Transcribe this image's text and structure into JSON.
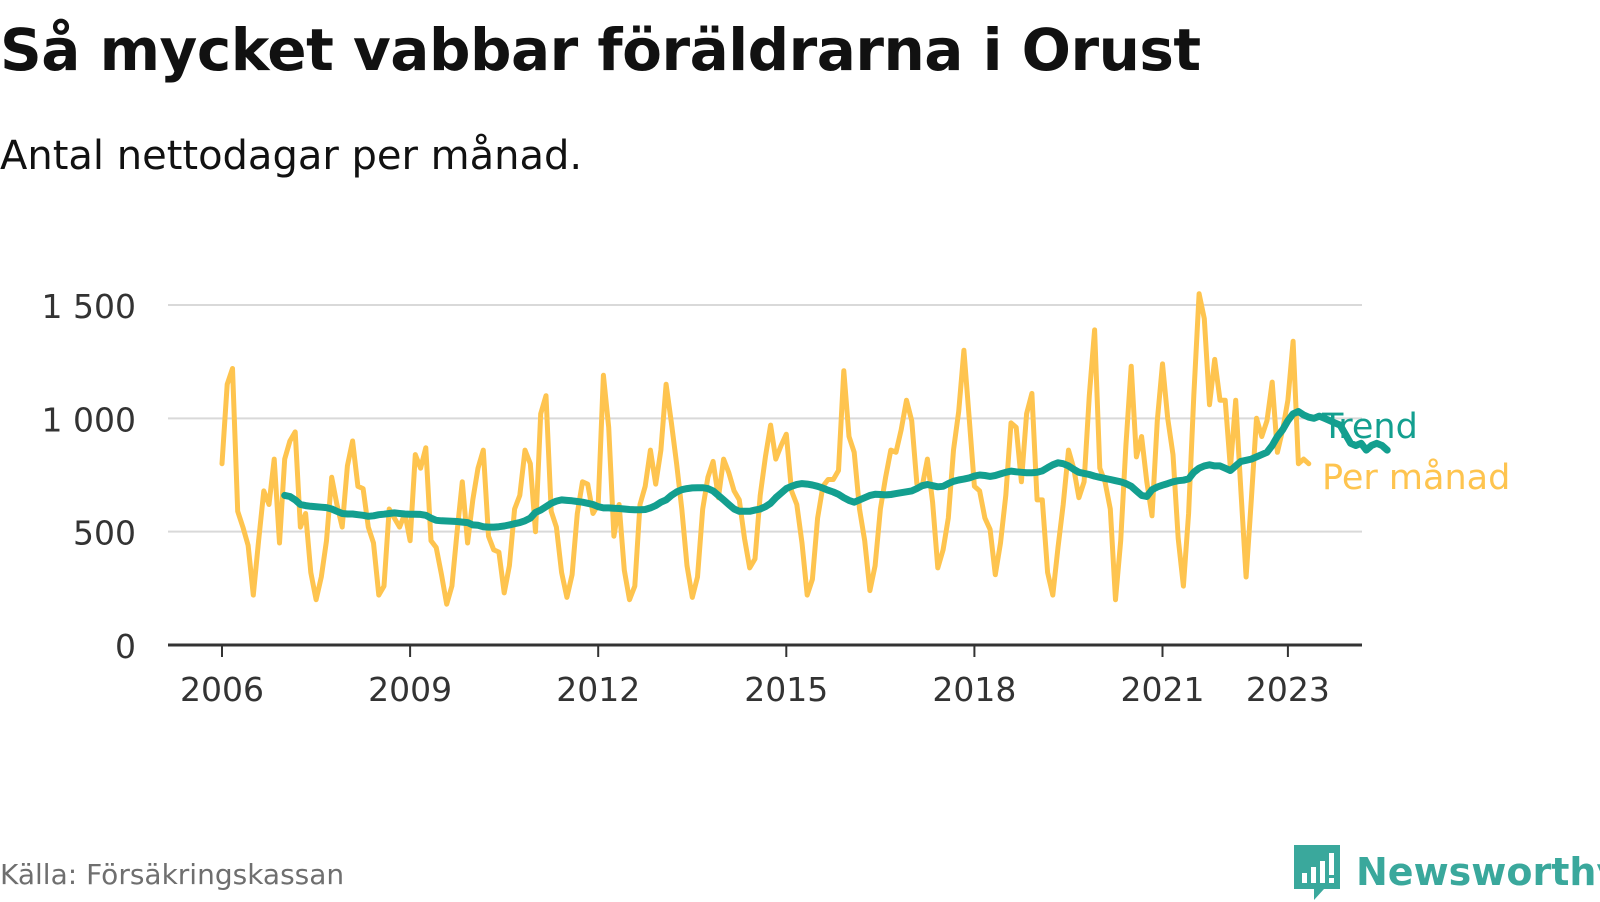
{
  "title": "Så mycket vabbar föräldrarna i Orust",
  "subtitle": "Antal nettodagar per månad.",
  "source": "Källa: Försäkringskassan",
  "brand": {
    "name": "Newsworthy",
    "icon": "newsworthy-logo-icon",
    "color": "#3aa89c"
  },
  "colors": {
    "monthly": "#fec44f",
    "trend": "#139f8f",
    "grid": "#d9d9d9",
    "axis": "#333333"
  },
  "chart_data": {
    "type": "line",
    "title": "Så mycket vabbar föräldrarna i Orust",
    "subtitle": "Antal nettodagar per månad.",
    "xlabel": "",
    "ylabel": "",
    "ylim": [
      0,
      1500
    ],
    "yticks": [
      0,
      500,
      1000,
      1500
    ],
    "ytick_labels": [
      "0",
      "500",
      "1 000",
      "1 500"
    ],
    "xticks": [
      2006,
      2009,
      2012,
      2015,
      2018,
      2021,
      2023
    ],
    "xtick_labels": [
      "2006",
      "2009",
      "2012",
      "2015",
      "2018",
      "2021",
      "2023"
    ],
    "grid": true,
    "legend": "direct labels at right end of lines",
    "series": [
      {
        "name": "Per månad",
        "start": "2006-01",
        "frequency": "monthly",
        "values": [
          800,
          1150,
          1220,
          590,
          520,
          440,
          220,
          460,
          680,
          620,
          820,
          450,
          820,
          900,
          940,
          520,
          580,
          320,
          200,
          300,
          460,
          740,
          620,
          520,
          790,
          900,
          700,
          690,
          520,
          450,
          220,
          260,
          600,
          560,
          520,
          580,
          460,
          840,
          780,
          870,
          460,
          430,
          310,
          180,
          260,
          500,
          720,
          450,
          640,
          780,
          860,
          480,
          420,
          410,
          230,
          350,
          600,
          660,
          860,
          800,
          500,
          1020,
          1100,
          590,
          520,
          320,
          210,
          310,
          580,
          720,
          710,
          580,
          620,
          1190,
          960,
          480,
          620,
          330,
          200,
          260,
          620,
          700,
          860,
          710,
          860,
          1150,
          980,
          800,
          600,
          350,
          210,
          300,
          600,
          740,
          810,
          650,
          820,
          760,
          680,
          640,
          470,
          340,
          380,
          660,
          830,
          970,
          820,
          880,
          930,
          680,
          620,
          450,
          220,
          290,
          560,
          700,
          730,
          730,
          770,
          1210,
          920,
          850,
          600,
          460,
          240,
          350,
          600,
          740,
          860,
          850,
          950,
          1080,
          990,
          710,
          700,
          820,
          630,
          340,
          420,
          560,
          860,
          1030,
          1300,
          1000,
          700,
          680,
          560,
          510,
          310,
          450,
          660,
          980,
          960,
          720,
          1020,
          1110,
          640,
          640,
          320,
          220,
          430,
          620,
          860,
          780,
          650,
          720,
          1100,
          1390,
          780,
          720,
          600,
          200,
          460,
          880,
          1230,
          830,
          920,
          720,
          570,
          990,
          1240,
          1000,
          840,
          470,
          260,
          580,
          1100,
          1550,
          1440,
          1060,
          1260,
          1080,
          1080,
          780,
          1080,
          680,
          300,
          640,
          1000,
          920,
          990,
          1160,
          850,
          950,
          1080,
          1340,
          800,
          820,
          800
        ]
      },
      {
        "name": "Trend",
        "start": "2007-01",
        "frequency": "monthly",
        "values": [
          660,
          655,
          640,
          620,
          615,
          612,
          610,
          608,
          606,
          600,
          590,
          580,
          578,
          578,
          575,
          572,
          568,
          570,
          575,
          577,
          580,
          583,
          580,
          578,
          577,
          577,
          576,
          572,
          560,
          550,
          548,
          547,
          546,
          545,
          542,
          540,
          530,
          528,
          522,
          520,
          520,
          522,
          525,
          530,
          535,
          540,
          548,
          560,
          585,
          595,
          610,
          625,
          635,
          640,
          638,
          636,
          633,
          630,
          625,
          620,
          610,
          605,
          605,
          603,
          602,
          600,
          598,
          597,
          597,
          598,
          605,
          615,
          630,
          640,
          660,
          675,
          685,
          690,
          693,
          694,
          694,
          690,
          680,
          660,
          640,
          620,
          600,
          590,
          590,
          590,
          595,
          600,
          610,
          625,
          650,
          670,
          690,
          700,
          708,
          712,
          710,
          706,
          700,
          692,
          683,
          675,
          665,
          650,
          638,
          630,
          640,
          650,
          660,
          665,
          664,
          662,
          664,
          668,
          672,
          676,
          680,
          690,
          703,
          708,
          703,
          698,
          700,
          712,
          722,
          728,
          732,
          737,
          745,
          750,
          748,
          744,
          748,
          755,
          762,
          767,
          764,
          762,
          760,
          760,
          762,
          768,
          782,
          795,
          804,
          800,
          790,
          775,
          762,
          757,
          752,
          745,
          740,
          735,
          730,
          725,
          720,
          712,
          700,
          680,
          660,
          655,
          685,
          697,
          705,
          712,
          720,
          725,
          727,
          733,
          762,
          780,
          790,
          795,
          790,
          790,
          780,
          770,
          790,
          810,
          815,
          820,
          830,
          840,
          850,
          880,
          920,
          950,
          990,
          1020,
          1030,
          1015,
          1005,
          1000,
          1010,
          1000,
          990,
          980,
          970,
          930,
          890,
          880,
          890,
          860,
          880,
          890,
          880,
          860
        ]
      }
    ]
  }
}
